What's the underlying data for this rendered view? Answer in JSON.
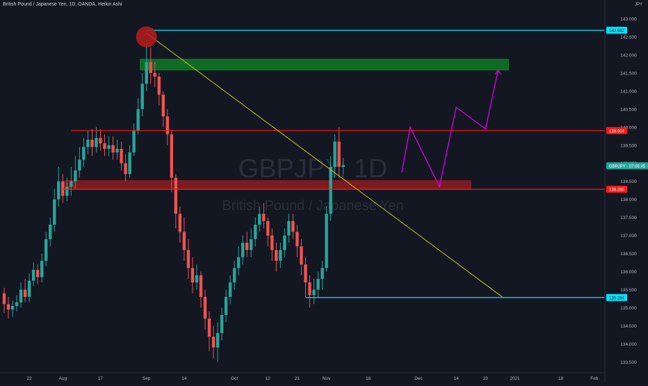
{
  "header": {
    "title": "British Pound / Japanese Yen, 1D, OANDA, Heikin Ashi",
    "currency": "JPY"
  },
  "watermark": {
    "symbol": "GBPJPY, 1D",
    "name": "British Pound / Japanese Yen"
  },
  "colors": {
    "background": "#131722",
    "up": "#26a69a",
    "down": "#ef5350",
    "cyan": "#00e5ff",
    "red_line": "#ff1a1a",
    "projection": "#d100e0",
    "trendline": "#c7c728",
    "zone_green": "#0f7a25",
    "zone_red": "#8e1b1f"
  },
  "price_axis": {
    "ticks": [
      "143.000",
      "142.500",
      "142.000",
      "141.500",
      "141.000",
      "140.500",
      "140.000",
      "139.500",
      "139.000",
      "138.500",
      "138.000",
      "137.500",
      "137.000",
      "136.500",
      "136.000",
      "135.500",
      "135.000",
      "134.500",
      "134.000",
      "133.500"
    ],
    "labels": [
      {
        "text": "142.682",
        "price": 142.682,
        "color": "#00e5ff",
        "textcolor": "#131722"
      },
      {
        "text": "139.904",
        "price": 139.904,
        "color": "#ff1a1a",
        "textcolor": "#ffffff"
      },
      {
        "text": "GBPJPY · 07:09:45",
        "price": 138.93,
        "color": "#26a69a",
        "textcolor": "#ffffff"
      },
      {
        "text": "138.280",
        "price": 138.28,
        "color": "#ff1a1a",
        "textcolor": "#ffffff"
      },
      {
        "text": "135.284",
        "price": 135.284,
        "color": "#00e5ff",
        "textcolor": "#131722"
      }
    ]
  },
  "time_axis": {
    "labels": [
      {
        "text": "22",
        "bar": 6
      },
      {
        "text": "Aug",
        "bar": 14
      },
      {
        "text": "17",
        "bar": 23
      },
      {
        "text": "Sep",
        "bar": 34
      },
      {
        "text": "14",
        "bar": 43
      },
      {
        "text": "Oct",
        "bar": 55
      },
      {
        "text": "12",
        "bar": 63
      },
      {
        "text": "21",
        "bar": 70
      },
      {
        "text": "Nov",
        "bar": 77
      },
      {
        "text": "16",
        "bar": 87
      },
      {
        "text": "Dec",
        "bar": 99
      },
      {
        "text": "14",
        "bar": 108
      },
      {
        "text": "23",
        "bar": 115
      },
      {
        "text": "2021",
        "bar": 122
      },
      {
        "text": "18",
        "bar": 133
      },
      {
        "text": "Feb",
        "bar": 141
      }
    ]
  },
  "chart_data": {
    "type": "candlestick",
    "y_range": [
      133.2,
      143.25
    ],
    "bars": [
      [
        135.4,
        135.1,
        135.55,
        134.85
      ],
      [
        135.1,
        134.95,
        135.3,
        134.7
      ],
      [
        134.95,
        135.05,
        135.2,
        134.75
      ],
      [
        135.05,
        135.15,
        135.35,
        134.9
      ],
      [
        135.15,
        135.5,
        135.7,
        135.0
      ],
      [
        135.5,
        135.3,
        135.8,
        135.15
      ],
      [
        135.3,
        135.75,
        135.95,
        135.15
      ],
      [
        135.75,
        136.05,
        136.25,
        135.6
      ],
      [
        136.05,
        135.85,
        136.2,
        135.65
      ],
      [
        135.85,
        136.3,
        136.5,
        135.7
      ],
      [
        136.3,
        136.9,
        137.1,
        136.15
      ],
      [
        136.9,
        137.3,
        137.5,
        136.7
      ],
      [
        137.3,
        138.0,
        138.3,
        137.1
      ],
      [
        138.0,
        138.5,
        138.9,
        137.8
      ],
      [
        138.5,
        138.1,
        138.7,
        137.9
      ],
      [
        138.1,
        138.35,
        138.6,
        137.95
      ],
      [
        138.35,
        138.5,
        138.9,
        138.1
      ],
      [
        138.5,
        138.8,
        139.2,
        138.3
      ],
      [
        138.8,
        139.1,
        139.45,
        138.6
      ],
      [
        139.1,
        139.45,
        139.7,
        138.9
      ],
      [
        139.45,
        139.65,
        139.9,
        139.25
      ],
      [
        139.65,
        139.45,
        139.95,
        139.2
      ],
      [
        139.45,
        139.7,
        140.0,
        139.3
      ],
      [
        139.7,
        139.55,
        139.95,
        139.35
      ],
      [
        139.55,
        139.4,
        139.8,
        139.2
      ],
      [
        139.4,
        139.5,
        139.75,
        139.2
      ],
      [
        139.5,
        139.3,
        139.75,
        139.1
      ],
      [
        139.3,
        139.4,
        139.65,
        139.1
      ],
      [
        139.4,
        139.0,
        139.6,
        138.8
      ],
      [
        139.0,
        138.7,
        139.25,
        138.5
      ],
      [
        138.7,
        139.3,
        139.5,
        138.6
      ],
      [
        139.3,
        139.9,
        140.1,
        139.2
      ],
      [
        139.9,
        140.5,
        140.8,
        139.8
      ],
      [
        140.5,
        141.2,
        141.5,
        140.3
      ],
      [
        141.2,
        141.8,
        142.3,
        141.0
      ],
      [
        141.8,
        141.5,
        142.2,
        141.2
      ],
      [
        141.5,
        141.4,
        141.8,
        141.1
      ],
      [
        141.4,
        140.9,
        141.5,
        140.6
      ],
      [
        140.9,
        140.3,
        141.0,
        140.0
      ],
      [
        140.3,
        139.8,
        140.5,
        139.5
      ],
      [
        139.8,
        138.6,
        139.9,
        138.2
      ],
      [
        138.6,
        137.6,
        138.7,
        137.2
      ],
      [
        137.6,
        137.1,
        137.8,
        136.8
      ],
      [
        137.1,
        136.6,
        137.5,
        136.3
      ],
      [
        136.6,
        136.1,
        136.9,
        135.8
      ],
      [
        136.1,
        135.7,
        136.4,
        135.4
      ],
      [
        135.7,
        135.9,
        136.2,
        135.5
      ],
      [
        135.9,
        135.3,
        136.0,
        135.0
      ],
      [
        135.3,
        134.7,
        135.5,
        134.4
      ],
      [
        134.7,
        134.2,
        134.9,
        133.8
      ],
      [
        134.2,
        133.9,
        134.5,
        133.6
      ],
      [
        133.9,
        134.3,
        134.6,
        133.5
      ],
      [
        134.3,
        134.8,
        135.0,
        134.1
      ],
      [
        134.8,
        135.3,
        135.5,
        134.6
      ],
      [
        135.3,
        135.7,
        135.9,
        135.1
      ],
      [
        135.7,
        136.1,
        136.3,
        135.5
      ],
      [
        136.1,
        136.4,
        136.7,
        135.9
      ],
      [
        136.4,
        136.8,
        137.0,
        136.2
      ],
      [
        136.8,
        136.6,
        137.1,
        136.4
      ],
      [
        136.6,
        136.9,
        137.2,
        136.4
      ],
      [
        136.9,
        137.3,
        137.5,
        136.7
      ],
      [
        137.3,
        137.6,
        137.8,
        137.1
      ],
      [
        137.6,
        137.4,
        137.9,
        137.2
      ],
      [
        137.4,
        137.0,
        137.5,
        136.7
      ],
      [
        137.0,
        136.6,
        137.2,
        136.3
      ],
      [
        136.6,
        136.3,
        136.8,
        136.0
      ],
      [
        136.3,
        136.6,
        136.8,
        136.1
      ],
      [
        136.6,
        137.0,
        137.2,
        136.4
      ],
      [
        137.0,
        137.4,
        137.6,
        136.8
      ],
      [
        137.4,
        137.1,
        137.6,
        136.9
      ],
      [
        137.1,
        136.7,
        137.3,
        136.4
      ],
      [
        136.7,
        136.2,
        136.9,
        135.9
      ],
      [
        136.2,
        135.7,
        136.4,
        135.3
      ],
      [
        135.7,
        135.35,
        135.9,
        135.0
      ],
      [
        135.35,
        135.5,
        135.8,
        135.1
      ],
      [
        135.5,
        135.8,
        136.0,
        135.3
      ],
      [
        135.8,
        136.1,
        136.3,
        135.5
      ],
      [
        136.1,
        137.6,
        137.8,
        136.0
      ],
      [
        137.6,
        138.9,
        139.2,
        137.4
      ],
      [
        138.9,
        139.6,
        139.8,
        138.6
      ],
      [
        139.6,
        138.9,
        140.0,
        138.6
      ],
      [
        138.9,
        138.95,
        139.15,
        138.7
      ]
    ],
    "levels": [
      {
        "name": "top-cyan",
        "price": 142.682,
        "from_bar": 34,
        "color": "#00e5ff"
      },
      {
        "name": "upper-red",
        "price": 139.904,
        "from_bar": 16,
        "color": "#ff1a1a"
      },
      {
        "name": "lower-red",
        "price": 138.28,
        "from_bar": 14,
        "color": "#ff1a1a"
      },
      {
        "name": "bottom-cyan",
        "price": 135.284,
        "from_bar": 72,
        "color": "#00e5ff"
      }
    ],
    "zones": [
      {
        "name": "supply-zone",
        "from_bar": 33,
        "to_bar": 120,
        "top": 141.88,
        "bottom": 141.58,
        "color": "#0f7a25"
      },
      {
        "name": "demand-zone",
        "from_bar": 15,
        "to_bar": 111,
        "top": 138.52,
        "bottom": 138.28,
        "color": "#8e1b1f"
      }
    ],
    "trendline": {
      "from_bar": 34,
      "from_price": 142.6,
      "to_bar": 119,
      "to_price": 135.3
    },
    "marker": {
      "bar": 34,
      "price": 142.5
    },
    "projection": [
      [
        95,
        138.75
      ],
      [
        97,
        140.0
      ],
      [
        104,
        138.35
      ],
      [
        108,
        140.55
      ],
      [
        115,
        139.95
      ],
      [
        118,
        141.58
      ]
    ]
  }
}
